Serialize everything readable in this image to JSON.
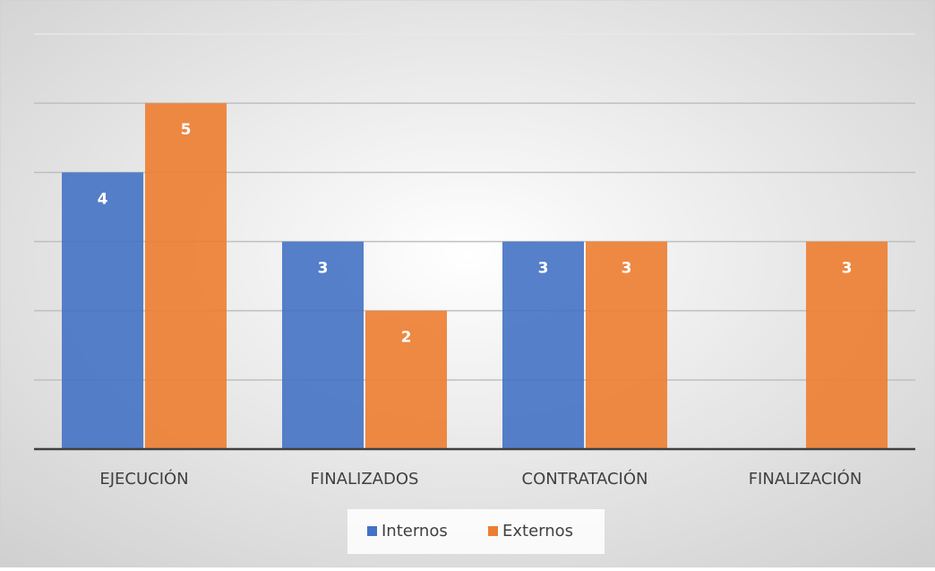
{
  "chart_data": {
    "type": "bar",
    "categories": [
      "EJECUCIÓN",
      "FINALIZADOS",
      "CONTRATACIÓN",
      "FINALIZACIÓN"
    ],
    "series": [
      {
        "name": "Internos",
        "color": "#4472c4",
        "values": [
          4,
          3,
          3,
          null
        ]
      },
      {
        "name": "Externos",
        "color": "#ed7d31",
        "values": [
          5,
          2,
          3,
          3
        ]
      }
    ],
    "ylim": [
      0,
      6
    ],
    "yticks": [
      0,
      1,
      2,
      3,
      4,
      5,
      6
    ],
    "grid": true,
    "legend": "bottom"
  }
}
